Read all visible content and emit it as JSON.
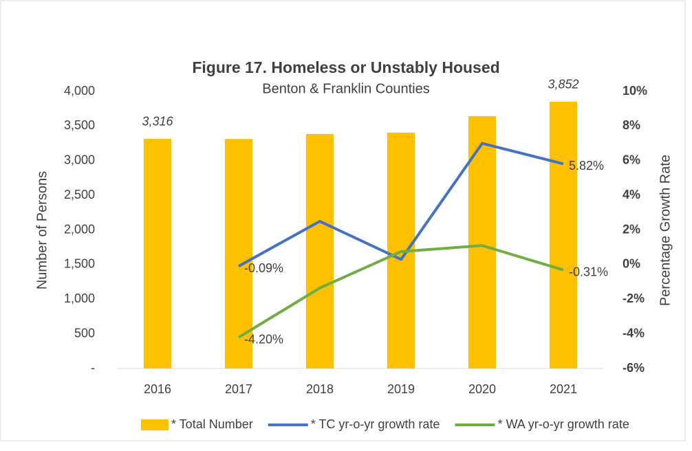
{
  "chart_data": {
    "type": "combo",
    "title": "Figure 17. Homeless or Unstably Housed",
    "subtitle": "Benton & Franklin Counties",
    "y_label": "Number of Persons",
    "y2_label": "Percentage Growth Rate",
    "categories": [
      "2016",
      "2017",
      "2018",
      "2019",
      "2020",
      "2021"
    ],
    "series": [
      {
        "name": "* Total Number",
        "type": "bar",
        "color": "#ffc000",
        "axis": "y",
        "values": [
          3316,
          3313,
          3385,
          3405,
          3643,
          3852
        ],
        "value_labels": [
          "3,316",
          null,
          null,
          null,
          null,
          "3,852"
        ]
      },
      {
        "name": "* TC yr-o-yr growth rate",
        "type": "line",
        "color": "#4472c4",
        "axis": "y2",
        "values": [
          null,
          -0.09,
          2.5,
          0.3,
          7.0,
          5.82
        ],
        "value_labels": [
          null,
          "-0.09%",
          null,
          null,
          null,
          "5.82%"
        ]
      },
      {
        "name": "* WA yr-o-yr growth rate",
        "type": "line",
        "color": "#70ad47",
        "axis": "y2",
        "values": [
          null,
          -4.2,
          -1.35,
          0.75,
          1.1,
          -0.31
        ],
        "value_labels": [
          null,
          "-4.20%",
          null,
          null,
          null,
          "-0.31%"
        ]
      }
    ],
    "ylim": [
      0,
      4000
    ],
    "yticks": [
      {
        "value": 0,
        "label": "-"
      },
      500,
      {
        "value": 1000,
        "label": "1,000"
      },
      {
        "value": 1500,
        "label": "1,500"
      },
      {
        "value": 2000,
        "label": "2,000"
      },
      {
        "value": 2500,
        "label": "2,500"
      },
      {
        "value": 3000,
        "label": "3,000"
      },
      {
        "value": 3500,
        "label": "3,500"
      },
      {
        "value": 4000,
        "label": "4,000"
      }
    ],
    "y2lim": [
      -6,
      10
    ],
    "y2ticks": [
      {
        "value": -6,
        "label": "-6%"
      },
      {
        "value": -4,
        "label": "-4%"
      },
      {
        "value": -2,
        "label": "-2%"
      },
      {
        "value": 0,
        "label": "0%"
      },
      {
        "value": 2,
        "label": "2%"
      },
      {
        "value": 4,
        "label": "4%"
      },
      {
        "value": 6,
        "label": "6%"
      },
      {
        "value": 8,
        "label": "8%"
      },
      {
        "value": 10,
        "label": "10%"
      }
    ],
    "legend": "bottom"
  }
}
